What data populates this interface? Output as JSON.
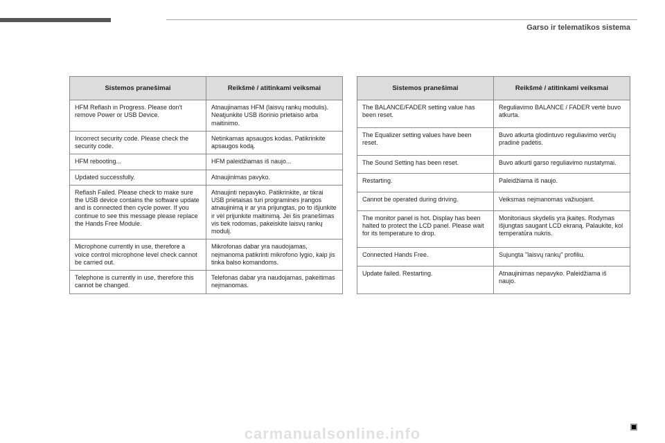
{
  "sectionTitle": "Garso ir telematikos sistema",
  "header1": "Sistemos pranešimai",
  "header2": "Reikšmė / atitinkami veiksmai",
  "leftRows": [
    {
      "msg": "HFM Reflash in Progress.\nPlease don't remove Power or USB Device.",
      "meaning": "Atnaujinamas HFM (laisvų rankų modulis). Neatjunkite USB išorinio prietaiso arba maitinimo."
    },
    {
      "msg": "Incorrect security code.\nPlease check the security code.",
      "meaning": "Netinkamas apsaugos kodas.\nPatikrinkite apsaugos kodą."
    },
    {
      "msg": "HFM rebooting...",
      "meaning": "HFM paleidžiamas iš naujo..."
    },
    {
      "msg": "Updated successfully.",
      "meaning": "Atnaujinimas pavyko."
    },
    {
      "msg": "Reflash Failed.\nPlease check to make sure the USB device contains the software update and is connected then cycle power.\nIf you continue to see this message please replace the Hands Free Module.",
      "meaning": "Atnaujinti nepavyko.\nPatikrinkite, ar tikrai USB prietaisas turi programinės įrangos atnaujinimą ir ar yra prijungtas, po to išjunkite ir vėl prijunkite maitinimą.\nJei šis pranešimas vis tiek rodomas, pakeiskite laisvų rankų modulį."
    },
    {
      "msg": "Microphone currently in use, therefore a voice control microphone level check cannot be carried out.",
      "meaning": "Mikrofonas dabar yra naudojamas, neįmanoma patikrinti mikrofono lygio, kaip jis tinka balso komandoms."
    },
    {
      "msg": "Telephone is currently in use, therefore this cannot be changed.",
      "meaning": "Telefonas dabar yra naudojamas, pakeitimas neįmanomas."
    }
  ],
  "rightRows": [
    {
      "msg": "The BALANCE/FADER setting value has been reset.",
      "meaning": "Reguliavimo BALANCE / FADER vertė buvo atkurta."
    },
    {
      "msg": "The Equalizer setting values have been reset.",
      "meaning": "Buvo atkurta glodintuvo reguliavimo verčių pradinė padėtis."
    },
    {
      "msg": "The Sound Setting has been reset.",
      "meaning": "Buvo atkurti garso reguliavimo nustatymai."
    },
    {
      "msg": "Restarting.",
      "meaning": "Paleidžiama iš naujo."
    },
    {
      "msg": "Cannot be operated during driving.",
      "meaning": "Veiksmas neįmanomas važiuojant."
    },
    {
      "msg": "The monitor panel is hot.\nDisplay has been halted to protect the LCD panel.\nPlease wait for its temperature to drop.",
      "meaning": "Monitoriaus skydelis yra įkaitęs. Rodymas išjungtas saugant LCD ekraną.\nPalaukite, kol temperatūra nukris."
    },
    {
      "msg": "Connected Hands Free.",
      "meaning": "Sujungta \"laisvų rankų\" profiliu."
    },
    {
      "msg": "Update failed.\nRestarting.",
      "meaning": "Atnaujinimas nepavyko.\nPaleidžiama iš naujo."
    }
  ],
  "watermark": "carmanualsonline.info"
}
